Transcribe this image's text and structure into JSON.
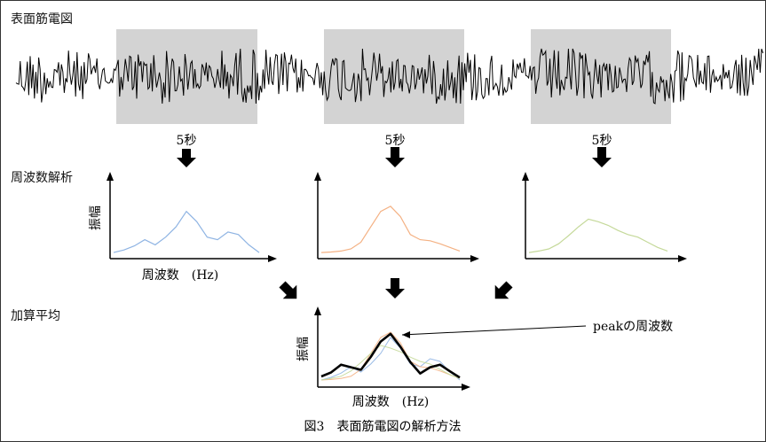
{
  "labels": {
    "semg": "表面筋電図",
    "freq_analysis": "周波数解析",
    "averaging": "加算平均",
    "window_duration": "5秒",
    "y_axis": "振幅",
    "x_axis": "周波数　(Hz)",
    "peak": "peakの周波数",
    "caption": "図3　表面筋電図の解析方法"
  },
  "colors": {
    "signal": "#000000",
    "window_fill": "#d3d3d3",
    "spectrum_1": "#8fb4e3",
    "spectrum_2": "#f4b183",
    "spectrum_3": "#c5d99a",
    "average": "#000000"
  },
  "spectra": [
    {
      "color_key": "spectrum_1",
      "values": [
        0.05,
        0.1,
        0.18,
        0.3,
        0.2,
        0.35,
        0.55,
        0.85,
        0.65,
        0.35,
        0.3,
        0.45,
        0.4,
        0.2,
        0.05
      ]
    },
    {
      "color_key": "spectrum_2",
      "values": [
        0.05,
        0.06,
        0.08,
        0.12,
        0.25,
        0.55,
        0.85,
        0.95,
        0.75,
        0.4,
        0.3,
        0.28,
        0.22,
        0.15,
        0.08
      ]
    },
    {
      "color_key": "spectrum_3",
      "values": [
        0.05,
        0.08,
        0.12,
        0.22,
        0.38,
        0.55,
        0.7,
        0.65,
        0.58,
        0.48,
        0.4,
        0.35,
        0.25,
        0.15,
        0.08
      ]
    }
  ],
  "average": {
    "values": [
      0.12,
      0.2,
      0.35,
      0.3,
      0.25,
      0.5,
      0.8,
      0.95,
      0.7,
      0.4,
      0.18,
      0.3,
      0.35,
      0.22,
      0.1
    ]
  }
}
